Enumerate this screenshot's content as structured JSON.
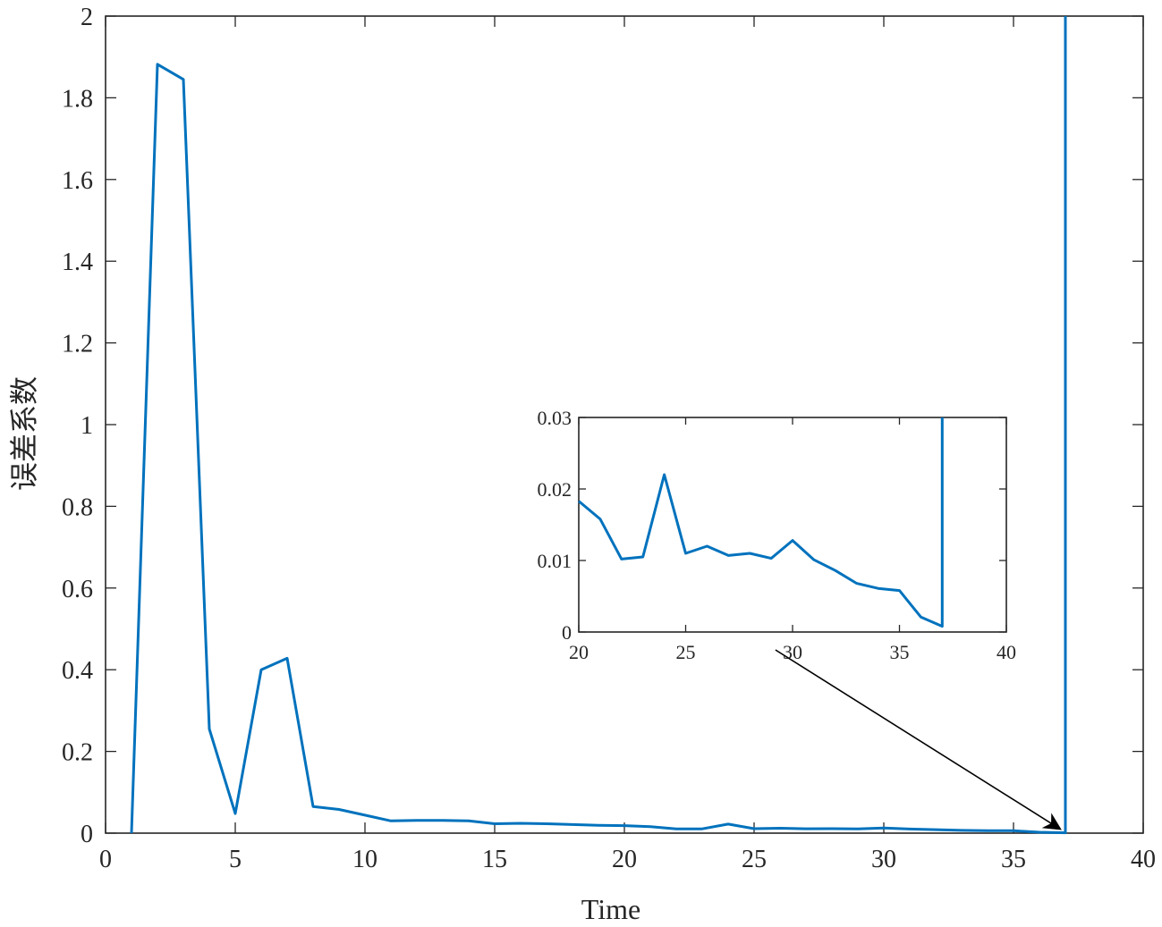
{
  "chart_data": [
    {
      "type": "line",
      "xlabel": "Time",
      "ylabel": "误差系数",
      "xlim": [
        0,
        40
      ],
      "ylim": [
        0,
        2
      ],
      "xticks": [
        0,
        5,
        10,
        15,
        20,
        25,
        30,
        35,
        40
      ],
      "yticks": [
        0,
        0.2,
        0.4,
        0.6,
        0.8,
        1,
        1.2,
        1.4,
        1.6,
        1.8,
        2
      ],
      "xtick_labels": [
        "0",
        "5",
        "10",
        "15",
        "20",
        "25",
        "30",
        "35",
        "40"
      ],
      "ytick_labels": [
        "0",
        "0.2",
        "0.4",
        "0.6",
        "0.8",
        "1",
        "1.2",
        "1.4",
        "1.6",
        "1.8",
        "2"
      ],
      "grid": false,
      "line_color": "#0072BD",
      "series": [
        {
          "x": [
            1,
            2,
            3,
            4,
            5,
            6,
            7,
            8,
            9,
            10,
            11,
            12,
            13,
            14,
            15,
            16,
            17,
            18,
            19,
            20,
            21,
            22,
            23,
            24,
            25,
            26,
            27,
            28,
            29,
            30,
            31,
            32,
            33,
            34,
            35,
            36,
            37,
            37
          ],
          "y": [
            0,
            1.882,
            1.845,
            0.255,
            0.048,
            0.4,
            0.428,
            0.065,
            0.058,
            0.044,
            0.03,
            0.031,
            0.031,
            0.03,
            0.023,
            0.024,
            0.023,
            0.021,
            0.019,
            0.0183,
            0.0158,
            0.0102,
            0.0105,
            0.022,
            0.011,
            0.012,
            0.0107,
            0.011,
            0.0103,
            0.0128,
            0.0101,
            0.0086,
            0.0068,
            0.0061,
            0.0058,
            0.0021,
            0.0008,
            2.0
          ]
        }
      ]
    },
    {
      "type": "line",
      "role": "inset",
      "xlim": [
        20,
        40
      ],
      "ylim": [
        0,
        0.03
      ],
      "xticks": [
        20,
        25,
        30,
        35,
        40
      ],
      "yticks": [
        0,
        0.01,
        0.02,
        0.03
      ],
      "xtick_labels": [
        "20",
        "25",
        "30",
        "35",
        "40"
      ],
      "ytick_labels": [
        "0",
        "0.01",
        "0.02",
        "0.03"
      ],
      "grid": false,
      "line_color": "#0072BD",
      "series": [
        {
          "x": [
            20,
            21,
            22,
            23,
            24,
            25,
            26,
            27,
            28,
            29,
            30,
            31,
            32,
            33,
            34,
            35,
            36,
            37,
            37
          ],
          "y": [
            0.0183,
            0.0158,
            0.0102,
            0.0105,
            0.022,
            0.011,
            0.012,
            0.0107,
            0.011,
            0.0103,
            0.0128,
            0.0101,
            0.0086,
            0.0068,
            0.0061,
            0.0058,
            0.0021,
            0.0008,
            0.03
          ]
        }
      ]
    }
  ],
  "annotation": {
    "type": "arrow",
    "from": [
      29.2,
      0.03
    ],
    "to": [
      36.8,
      0.01
    ],
    "color": "#000000"
  }
}
